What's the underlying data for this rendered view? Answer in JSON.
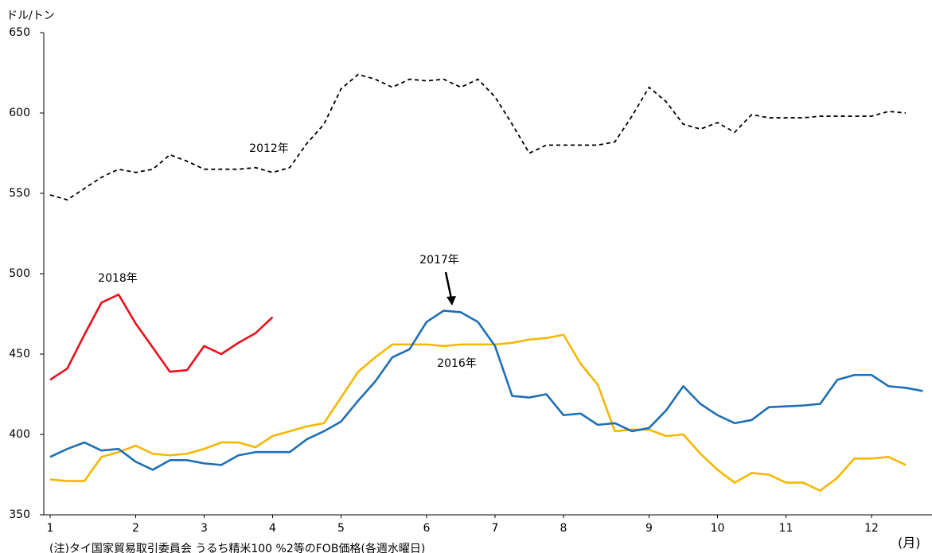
{
  "chart_data": {
    "type": "line",
    "y_label": "ドル/トン",
    "x_label": "(月)",
    "note": "(注)タイ国家貿易取引委員会 うるち精米100 %2等のFOB価格(各週水曜日)",
    "categories": [
      "1",
      null,
      null,
      null,
      null,
      "2",
      null,
      null,
      null,
      "3",
      null,
      null,
      null,
      "4",
      null,
      null,
      null,
      "5",
      null,
      null,
      null,
      null,
      "6",
      null,
      null,
      null,
      "7",
      null,
      null,
      null,
      "8",
      null,
      null,
      null,
      null,
      "9",
      null,
      null,
      null,
      "10",
      null,
      null,
      null,
      "11",
      null,
      null,
      null,
      null,
      "12",
      null,
      null,
      null
    ],
    "ylim": [
      350,
      650
    ],
    "yticks": [
      350,
      400,
      450,
      500,
      550,
      600,
      650
    ],
    "grid": false,
    "series": [
      {
        "name": "2012年",
        "color": "#000000",
        "line_style": "dashed",
        "values": [
          549,
          546,
          553,
          560,
          565,
          563,
          565,
          574,
          570,
          565,
          565,
          565,
          566,
          563,
          566,
          581,
          593,
          615,
          624,
          621,
          616,
          621,
          620,
          621,
          616,
          621,
          610,
          593,
          575,
          580,
          580,
          580,
          580,
          582,
          598,
          616,
          607,
          593,
          590,
          594,
          588,
          599,
          597,
          597,
          597,
          598,
          598,
          598,
          598,
          601,
          600,
          null
        ]
      },
      {
        "name": "2016年",
        "color": "#f5b800",
        "line_style": "solid",
        "values": [
          372,
          371,
          371,
          386,
          389,
          393,
          388,
          387,
          388,
          391,
          395,
          395,
          392,
          399,
          402,
          405,
          407,
          423,
          439,
          448,
          456,
          456,
          456,
          455,
          456,
          456,
          456,
          457,
          459,
          460,
          462,
          444,
          431,
          402,
          403,
          403,
          399,
          400,
          388,
          378,
          370,
          376,
          375,
          370,
          370,
          365,
          373,
          385,
          385,
          386,
          381,
          null
        ]
      },
      {
        "name": "2017年",
        "color": "#1f6fb4",
        "line_style": "solid",
        "values": [
          386,
          391,
          395,
          390,
          391,
          383,
          378,
          384,
          384,
          382,
          381,
          387,
          389,
          389,
          389,
          397,
          402,
          408,
          421,
          433,
          448,
          453,
          470,
          477,
          476,
          470,
          455,
          424,
          423,
          425,
          412,
          413,
          406,
          407,
          402,
          404,
          415,
          430,
          419,
          412,
          407,
          409,
          417,
          417.5,
          418,
          419,
          434,
          437,
          437,
          430,
          429,
          427
        ]
      },
      {
        "name": "2018年",
        "color": "#e8101a",
        "line_style": "solid",
        "values": [
          434,
          441,
          462,
          482,
          487,
          469,
          454,
          439,
          440,
          455,
          450,
          457,
          463,
          473,
          null,
          null,
          null,
          null,
          null,
          null,
          null,
          null,
          null,
          null,
          null,
          null,
          null,
          null,
          null,
          null,
          null,
          null,
          null,
          null,
          null,
          null,
          null,
          null,
          null,
          null,
          null,
          null,
          null,
          null,
          null,
          null,
          null,
          null,
          null,
          null,
          null,
          null
        ]
      }
    ]
  }
}
